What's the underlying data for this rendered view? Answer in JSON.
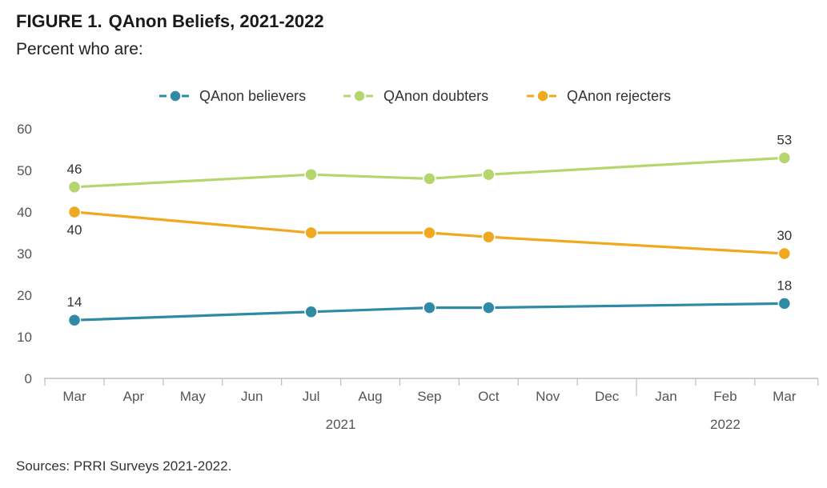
{
  "figure": {
    "number": "FIGURE 1.",
    "title": "QAnon Beliefs, 2021-2022",
    "subtitle": "Percent who are:"
  },
  "source": "Sources: PRRI Surveys 2021-2022.",
  "chart_data": {
    "type": "line",
    "title": "QAnon Beliefs, 2021-2022",
    "subtitle": "Percent who are:",
    "x_ticks": [
      "Mar",
      "Apr",
      "May",
      "Jun",
      "Jul",
      "Aug",
      "Sep",
      "Oct",
      "Nov",
      "Dec",
      "Jan",
      "Feb",
      "Mar"
    ],
    "year_labels": [
      {
        "label": "2021",
        "from_tick": 0,
        "to_tick": 9
      },
      {
        "label": "2022",
        "from_tick": 10,
        "to_tick": 12
      }
    ],
    "ylim": [
      0,
      60
    ],
    "y_ticks": [
      0,
      10,
      20,
      30,
      40,
      50,
      60
    ],
    "grid": false,
    "legend_position": "top-center",
    "series": [
      {
        "name": "QAnon believers",
        "color": "#2f8aa6",
        "points": [
          {
            "x": "Mar 2021",
            "tick": 0,
            "y": 14,
            "label": "14",
            "label_pos": "above"
          },
          {
            "x": "Jul 2021",
            "tick": 4,
            "y": 16
          },
          {
            "x": "Sep 2021",
            "tick": 6,
            "y": 17
          },
          {
            "x": "Oct 2021",
            "tick": 7,
            "y": 17
          },
          {
            "x": "Mar 2022",
            "tick": 12,
            "y": 18,
            "label": "18",
            "label_pos": "above"
          }
        ]
      },
      {
        "name": "QAnon doubters",
        "color": "#b5d66e",
        "points": [
          {
            "x": "Mar 2021",
            "tick": 0,
            "y": 46,
            "label": "46",
            "label_pos": "above"
          },
          {
            "x": "Jul 2021",
            "tick": 4,
            "y": 49
          },
          {
            "x": "Sep 2021",
            "tick": 6,
            "y": 48
          },
          {
            "x": "Oct 2021",
            "tick": 7,
            "y": 49
          },
          {
            "x": "Mar 2022",
            "tick": 12,
            "y": 53,
            "label": "53",
            "label_pos": "above"
          }
        ]
      },
      {
        "name": "QAnon rejecters",
        "color": "#f0a81e",
        "points": [
          {
            "x": "Mar 2021",
            "tick": 0,
            "y": 40,
            "label": "40",
            "label_pos": "below"
          },
          {
            "x": "Jul 2021",
            "tick": 4,
            "y": 35
          },
          {
            "x": "Sep 2021",
            "tick": 6,
            "y": 35
          },
          {
            "x": "Oct 2021",
            "tick": 7,
            "y": 34
          },
          {
            "x": "Mar 2022",
            "tick": 12,
            "y": 30,
            "label": "30",
            "label_pos": "above"
          }
        ]
      }
    ]
  }
}
